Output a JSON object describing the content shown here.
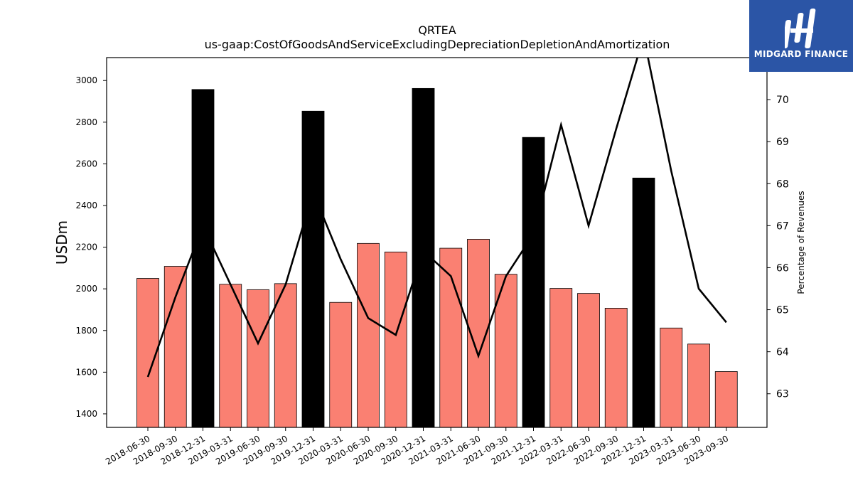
{
  "chart_data": {
    "type": "bar",
    "title": "QRTEA",
    "subtitle": "us-gaap:CostOfGoodsAndServiceExcludingDepreciationDepletionAndAmortization",
    "ylabel": "USDm",
    "y2label": "Percentage of Revenues",
    "ylim": [
      1335,
      3110
    ],
    "y2lim": [
      62.2,
      71.0
    ],
    "yticks": [
      1400,
      1600,
      1800,
      2000,
      2200,
      2400,
      2600,
      2800,
      3000
    ],
    "y2ticks": [
      63,
      64,
      65,
      66,
      67,
      68,
      69,
      70
    ],
    "categories": [
      "2018-06-30",
      "2018-09-30",
      "2018-12-31",
      "2019-03-31",
      "2019-06-30",
      "2019-09-30",
      "2019-12-31",
      "2020-03-31",
      "2020-06-30",
      "2020-09-30",
      "2020-12-31",
      "2021-03-31",
      "2021-06-30",
      "2021-09-30",
      "2021-12-31",
      "2022-03-31",
      "2022-06-30",
      "2022-09-30",
      "2022-12-31",
      "2023-03-31",
      "2023-06-30",
      "2023-09-30"
    ],
    "series": [
      {
        "type": "bar",
        "axis": "left",
        "values": [
          2050,
          2108,
          2957,
          2022,
          1996,
          2025,
          2853,
          1935,
          2218,
          2177,
          2962,
          2195,
          2238,
          2070,
          2727,
          2002,
          1978,
          1907,
          2532,
          1812,
          1735,
          1603
        ],
        "colors": [
          "#fa8072",
          "#fa8072",
          "#000000",
          "#fa8072",
          "#fa8072",
          "#fa8072",
          "#000000",
          "#fa8072",
          "#fa8072",
          "#fa8072",
          "#000000",
          "#fa8072",
          "#fa8072",
          "#fa8072",
          "#000000",
          "#fa8072",
          "#fa8072",
          "#fa8072",
          "#000000",
          "#fa8072",
          "#fa8072",
          "#fa8072"
        ]
      },
      {
        "type": "line",
        "axis": "right",
        "color": "#000000",
        "values": [
          63.4,
          65.3,
          67.0,
          65.6,
          64.2,
          65.6,
          67.8,
          66.2,
          64.8,
          64.4,
          66.4,
          65.8,
          63.9,
          65.8,
          66.8,
          69.4,
          67.0,
          69.3,
          71.5,
          68.3,
          65.5,
          64.7
        ]
      }
    ]
  },
  "logo": {
    "text": "MIDGARD FINANCE",
    "bg": "#2b55a6"
  }
}
